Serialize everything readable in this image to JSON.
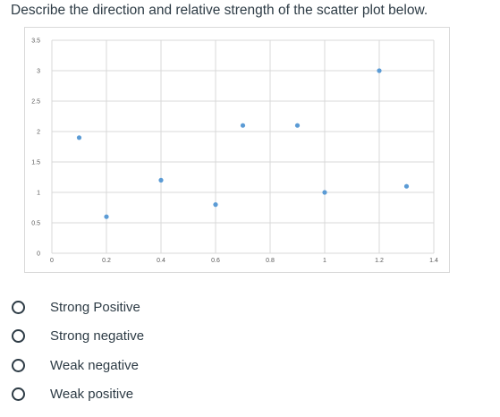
{
  "question": {
    "text": "Describe the direction and relative strength of the scatter plot below."
  },
  "chart_data": {
    "type": "scatter",
    "title": "",
    "xlabel": "",
    "ylabel": "",
    "xlim": [
      0,
      1.4
    ],
    "ylim": [
      0,
      3.5
    ],
    "grid": true,
    "x_ticks": [
      "0",
      "0.2",
      "0.4",
      "0.6",
      "0.8",
      "1",
      "1.2",
      "1.4"
    ],
    "y_ticks": [
      "0",
      "0.5",
      "1",
      "1.5",
      "2",
      "2.5",
      "3",
      "3.5"
    ],
    "marker_color": "#5b9bd5",
    "series": [
      {
        "points": [
          {
            "x": 0.1,
            "y": 1.9
          },
          {
            "x": 0.2,
            "y": 0.6
          },
          {
            "x": 0.4,
            "y": 1.2
          },
          {
            "x": 0.6,
            "y": 0.8
          },
          {
            "x": 0.7,
            "y": 2.1
          },
          {
            "x": 0.9,
            "y": 2.1
          },
          {
            "x": 1.0,
            "y": 1.0
          },
          {
            "x": 1.2,
            "y": 3.0
          },
          {
            "x": 1.3,
            "y": 1.1
          }
        ]
      }
    ]
  },
  "answers": {
    "options": [
      {
        "label": "Strong Positive"
      },
      {
        "label": "Strong negative"
      },
      {
        "label": "Weak negative"
      },
      {
        "label": "Weak positive"
      }
    ]
  }
}
